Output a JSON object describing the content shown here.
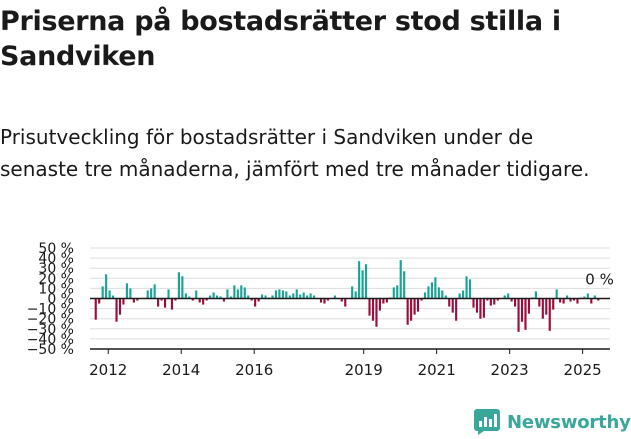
{
  "title": "Priserna på bostadsrätter stod stilla i Sandviken",
  "subtitle": "Prisutveckling för bostadsrätter i Sandviken under de senaste tre månaderna, jämfört med tre månader tidigare.",
  "brand": {
    "name": "Newsworthy",
    "color": "#39a89a",
    "icon": "bar-chart-logo-icon"
  },
  "colors": {
    "positive": "#1aa397",
    "negative": "#9b0d3d",
    "grid": "#dddddd",
    "axis": "#1a1a1a"
  },
  "chart_data": {
    "type": "bar",
    "y_unit": "%",
    "ylim": [
      -50,
      50
    ],
    "y_ticks": [
      {
        "value": 50,
        "label": "50 %"
      },
      {
        "value": 40,
        "label": "40 %"
      },
      {
        "value": 30,
        "label": "30 %"
      },
      {
        "value": 20,
        "label": "20 %"
      },
      {
        "value": 10,
        "label": "10 %"
      },
      {
        "value": 0,
        "label": "0 %"
      },
      {
        "value": -10,
        "label": "−10 %"
      },
      {
        "value": -20,
        "label": "−20 %"
      },
      {
        "value": -30,
        "label": "−30 %"
      },
      {
        "value": -40,
        "label": "−40 %"
      },
      {
        "value": -50,
        "label": "−50 %"
      }
    ],
    "x_start": 2011.5,
    "x_end": 2025.75,
    "x_ticks": [
      {
        "value": 2012,
        "label": "2012"
      },
      {
        "value": 2014,
        "label": "2014"
      },
      {
        "value": 2016,
        "label": "2016"
      },
      {
        "value": 2019,
        "label": "2019"
      },
      {
        "value": 2021,
        "label": "2021"
      },
      {
        "value": 2023,
        "label": "2023"
      },
      {
        "value": 2025,
        "label": "2025"
      }
    ],
    "grid": true,
    "annotation": {
      "label": "0 %",
      "x": 2025.3,
      "y": 0
    },
    "values": [
      -21,
      -5,
      12,
      24,
      8,
      3,
      -23,
      -16,
      -6,
      15,
      10,
      -4,
      -2,
      0,
      0,
      8,
      10,
      14,
      -8,
      -2,
      -9,
      9,
      -11,
      -2,
      26,
      22,
      5,
      2,
      -2,
      8,
      -4,
      -6,
      -2,
      3,
      6,
      3,
      2,
      -3,
      9,
      2,
      13,
      9,
      13,
      11,
      3,
      -2,
      -8,
      -3,
      4,
      3,
      1,
      3,
      8,
      9,
      8,
      7,
      3,
      5,
      9,
      4,
      6,
      3,
      5,
      3,
      0,
      -4,
      -5,
      -2,
      0,
      3,
      0,
      -3,
      -8,
      0,
      12,
      7,
      37,
      28,
      34,
      -17,
      -22,
      -28,
      -12,
      -5,
      -4,
      1,
      11,
      13,
      38,
      27,
      -26,
      -22,
      -16,
      -13,
      -2,
      6,
      12,
      16,
      21,
      11,
      8,
      3,
      -8,
      -14,
      -22,
      5,
      8,
      22,
      19,
      -9,
      -14,
      -20,
      -19,
      -2,
      -7,
      -6,
      -2,
      0,
      3,
      5,
      -3,
      -8,
      -33,
      -23,
      -31,
      -15,
      1,
      7,
      -8,
      -20,
      -16,
      -32,
      -11,
      9,
      -4,
      -5,
      3,
      -3,
      -2,
      -5,
      1,
      2,
      5,
      -5,
      3,
      -2
    ]
  }
}
